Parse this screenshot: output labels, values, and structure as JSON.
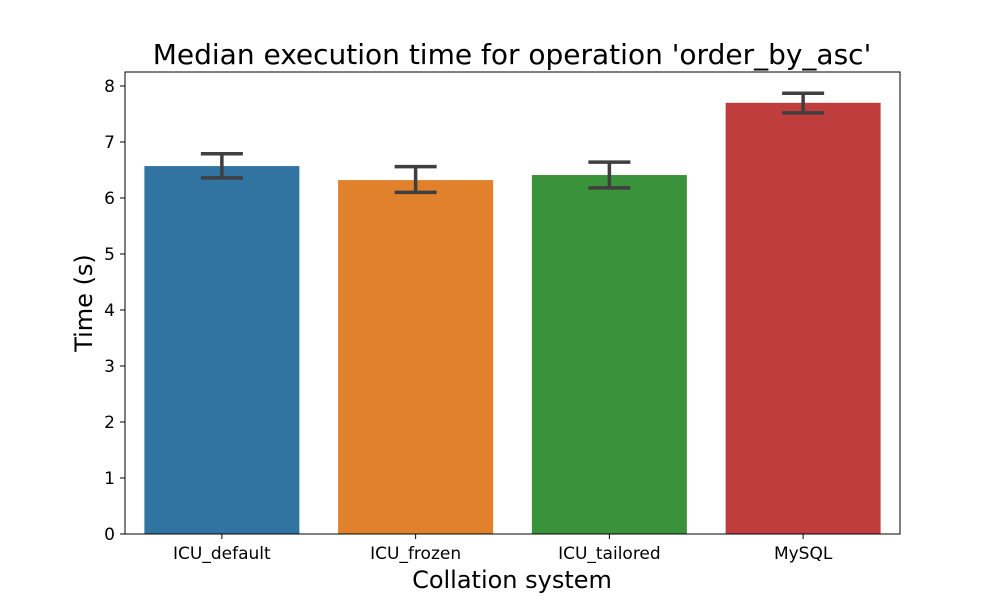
{
  "chart_data": {
    "type": "bar",
    "title": "Median execution time for operation 'order_by_asc'",
    "xlabel": "Collation system",
    "ylabel": "Time (s)",
    "categories": [
      "ICU_default",
      "ICU_frozen",
      "ICU_tailored",
      "MySQL"
    ],
    "values": [
      6.57,
      6.32,
      6.41,
      7.7
    ],
    "error_low": [
      6.36,
      6.1,
      6.18,
      7.52
    ],
    "error_high": [
      6.79,
      6.56,
      6.64,
      7.87
    ],
    "colors": [
      "#3274a1",
      "#e1812c",
      "#3a923a",
      "#c03d3e"
    ],
    "error_color": "#3f3f3f",
    "ylim": [
      0,
      8.25
    ],
    "yticks": [
      0,
      1,
      2,
      3,
      4,
      5,
      6,
      7,
      8
    ],
    "grid": false,
    "legend": "none"
  }
}
